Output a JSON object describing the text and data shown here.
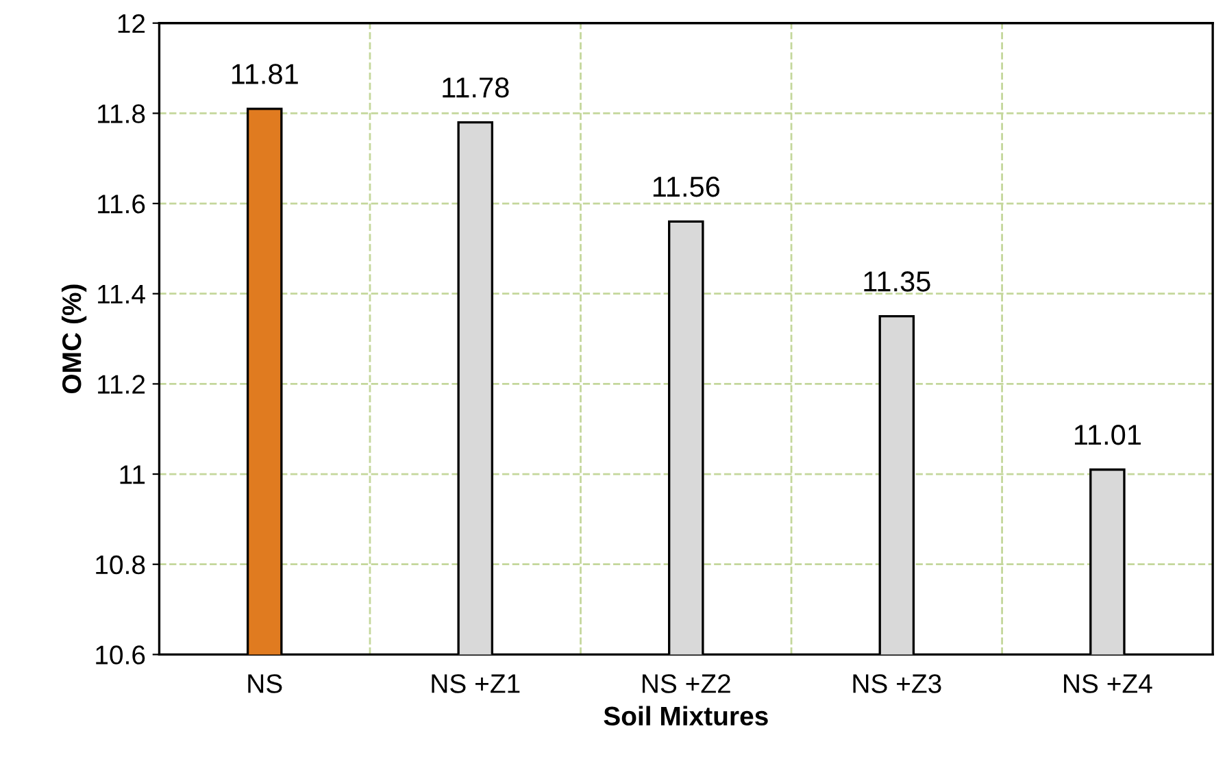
{
  "chart_data": {
    "type": "bar",
    "xlabel": "Soil Mixtures",
    "ylabel": "OMC (%)",
    "categories": [
      "NS",
      "NS +Z1",
      "NS +Z2",
      "NS +Z3",
      "NS +Z4"
    ],
    "values": [
      11.81,
      11.78,
      11.56,
      11.35,
      11.01
    ],
    "colors": [
      "#e07b20",
      "#d9d9d9",
      "#d9d9d9",
      "#d9d9d9",
      "#d9d9d9"
    ],
    "ylim": [
      10.6,
      12
    ],
    "yticks": [
      10.6,
      10.8,
      {
        "value": 11,
        "label": "11"
      },
      11.2,
      11.4,
      11.6,
      11.8,
      {
        "value": 12,
        "label": "12"
      }
    ],
    "grid": true,
    "data_labels": true
  }
}
